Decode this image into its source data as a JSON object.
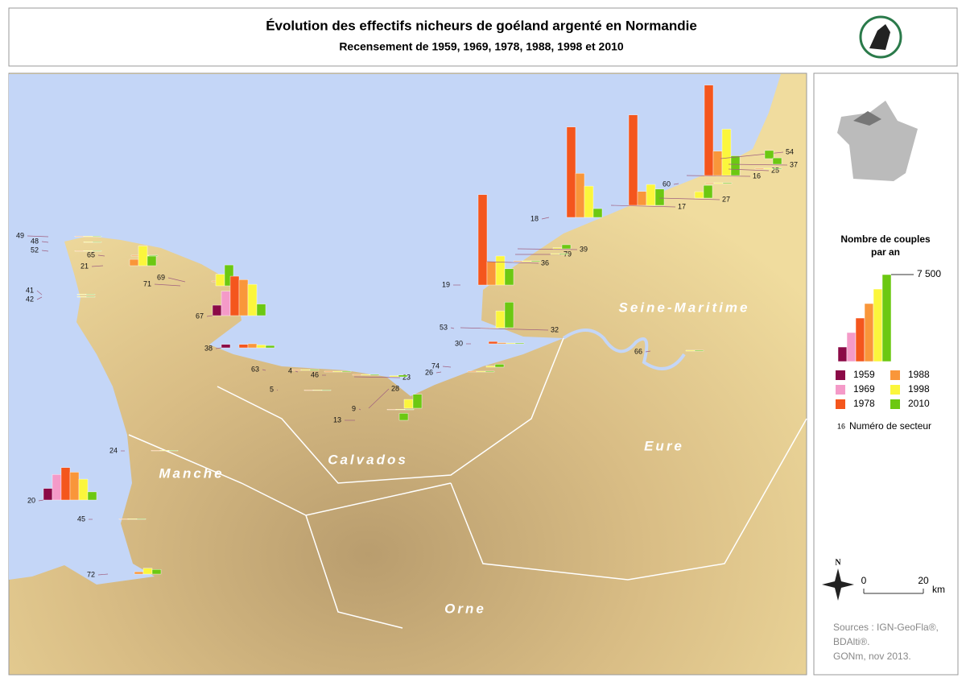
{
  "header": {
    "title": "Évolution des effectifs nicheurs de goéland argenté en Normandie",
    "subtitle": "Recensement de 1959, 1969, 1978, 1988, 1998 et 2010"
  },
  "map": {
    "regions": [
      "Manche",
      "Calvados",
      "Orne",
      "Eure",
      "Seine-Maritime"
    ],
    "sectors": [
      {
        "label": "49",
        "values": [
          null,
          null,
          null,
          50,
          50,
          50
        ]
      },
      {
        "label": "48",
        "values": [
          null,
          null,
          null,
          null,
          50,
          50
        ]
      },
      {
        "label": "52",
        "values": [
          null,
          null,
          null,
          50,
          50,
          50
        ]
      },
      {
        "label": "65",
        "values": [
          null,
          null,
          null,
          70,
          70,
          70
        ]
      },
      {
        "label": "21",
        "values": [
          null,
          null,
          null,
          550,
          1700,
          830
        ]
      },
      {
        "label": "69",
        "values": [
          null,
          null,
          null,
          70,
          70,
          70
        ]
      },
      {
        "label": "71",
        "values": [
          null,
          null,
          null,
          null,
          1000,
          1800
        ]
      },
      {
        "label": "67",
        "values": [
          900,
          2100,
          3400,
          3100,
          2700,
          1000
        ]
      },
      {
        "label": "41",
        "values": [
          null,
          null,
          null,
          null,
          50,
          50
        ]
      },
      {
        "label": "42",
        "values": [
          null,
          null,
          null,
          null,
          50,
          50
        ]
      },
      {
        "label": "38",
        "values": [
          300,
          null,
          300,
          350,
          250,
          200
        ]
      },
      {
        "label": "63",
        "values": [
          null,
          null,
          null,
          70,
          70,
          70
        ]
      },
      {
        "label": "4",
        "values": [
          null,
          null,
          null,
          70,
          70,
          70
        ]
      },
      {
        "label": "46",
        "values": [
          null,
          null,
          null,
          70,
          70,
          70
        ]
      },
      {
        "label": "23",
        "values": [
          null,
          null,
          null,
          null,
          100,
          150
        ]
      },
      {
        "label": "5",
        "values": [
          null,
          null,
          null,
          50,
          50,
          50
        ]
      },
      {
        "label": "28",
        "values": [
          null,
          null,
          null,
          null,
          760,
          1200
        ]
      },
      {
        "label": "9",
        "values": [
          null,
          null,
          null,
          50,
          50,
          50
        ]
      },
      {
        "label": "13",
        "values": [
          null,
          null,
          null,
          null,
          null,
          600
        ]
      },
      {
        "label": "24",
        "values": [
          null,
          null,
          null,
          50,
          50,
          50
        ]
      },
      {
        "label": "20",
        "values": [
          1000,
          2200,
          2800,
          2400,
          1800,
          700
        ]
      },
      {
        "label": "45",
        "values": [
          null,
          null,
          null,
          50,
          50,
          50
        ]
      },
      {
        "label": "72",
        "values": [
          null,
          null,
          null,
          200,
          500,
          400
        ]
      },
      {
        "label": "53",
        "values": [
          null,
          null,
          null,
          50,
          50,
          50
        ]
      },
      {
        "label": "32",
        "values": [
          null,
          null,
          null,
          null,
          1450,
          2200
        ]
      },
      {
        "label": "30",
        "values": [
          null,
          null,
          200,
          100,
          70,
          70
        ]
      },
      {
        "label": "74",
        "values": [
          null,
          null,
          null,
          null,
          100,
          250
        ]
      },
      {
        "label": "26",
        "values": [
          null,
          null,
          null,
          70,
          70,
          70
        ]
      },
      {
        "label": "19",
        "values": [
          null,
          null,
          7800,
          2000,
          2500,
          1400
        ]
      },
      {
        "label": "36",
        "values": [
          null,
          null,
          null,
          70,
          70,
          70
        ]
      },
      {
        "label": "79",
        "values": [
          null,
          null,
          null,
          null,
          70,
          70
        ]
      },
      {
        "label": "39",
        "values": [
          null,
          null,
          null,
          null,
          100,
          350
        ]
      },
      {
        "label": "18",
        "values": [
          null,
          null,
          7800,
          3800,
          2700,
          760
        ]
      },
      {
        "label": "17",
        "values": [
          null,
          null,
          7800,
          1200,
          1800,
          1400
        ]
      },
      {
        "label": "60",
        "values": [
          null,
          null,
          null,
          70,
          70,
          70
        ]
      },
      {
        "label": "27",
        "values": [
          null,
          null,
          null,
          null,
          550,
          1100
        ]
      },
      {
        "label": "16",
        "values": [
          null,
          null,
          7800,
          2100,
          4000,
          1700
        ]
      },
      {
        "label": "25",
        "values": [
          null,
          null,
          null,
          70,
          70,
          70
        ]
      },
      {
        "label": "54",
        "values": [
          null,
          null,
          null,
          null,
          null,
          700
        ]
      },
      {
        "label": "37",
        "values": [
          null,
          null,
          null,
          null,
          null,
          550
        ]
      },
      {
        "label": "66",
        "values": [
          null,
          null,
          null,
          null,
          70,
          70
        ]
      }
    ]
  },
  "legend": {
    "title": "Nombre de couples par an",
    "scale_tick": {
      "value": 7500,
      "label": "7 500"
    },
    "years": [
      "1959",
      "1969",
      "1978",
      "1988",
      "1998",
      "2010"
    ],
    "colors": [
      "#8b0a47",
      "#f49ac8",
      "#f4561d",
      "#f9963a",
      "#fbf63c",
      "#6cc812"
    ],
    "sector_example": "16",
    "sector_text": "Numéro de secteur"
  },
  "north": "N",
  "scale_bar": {
    "ticks": [
      0,
      20
    ],
    "unit": "km"
  },
  "sources": [
    "Sources : IGN-GeoFla®,",
    "BDAlti®.",
    "GONm, nov 2013."
  ]
}
